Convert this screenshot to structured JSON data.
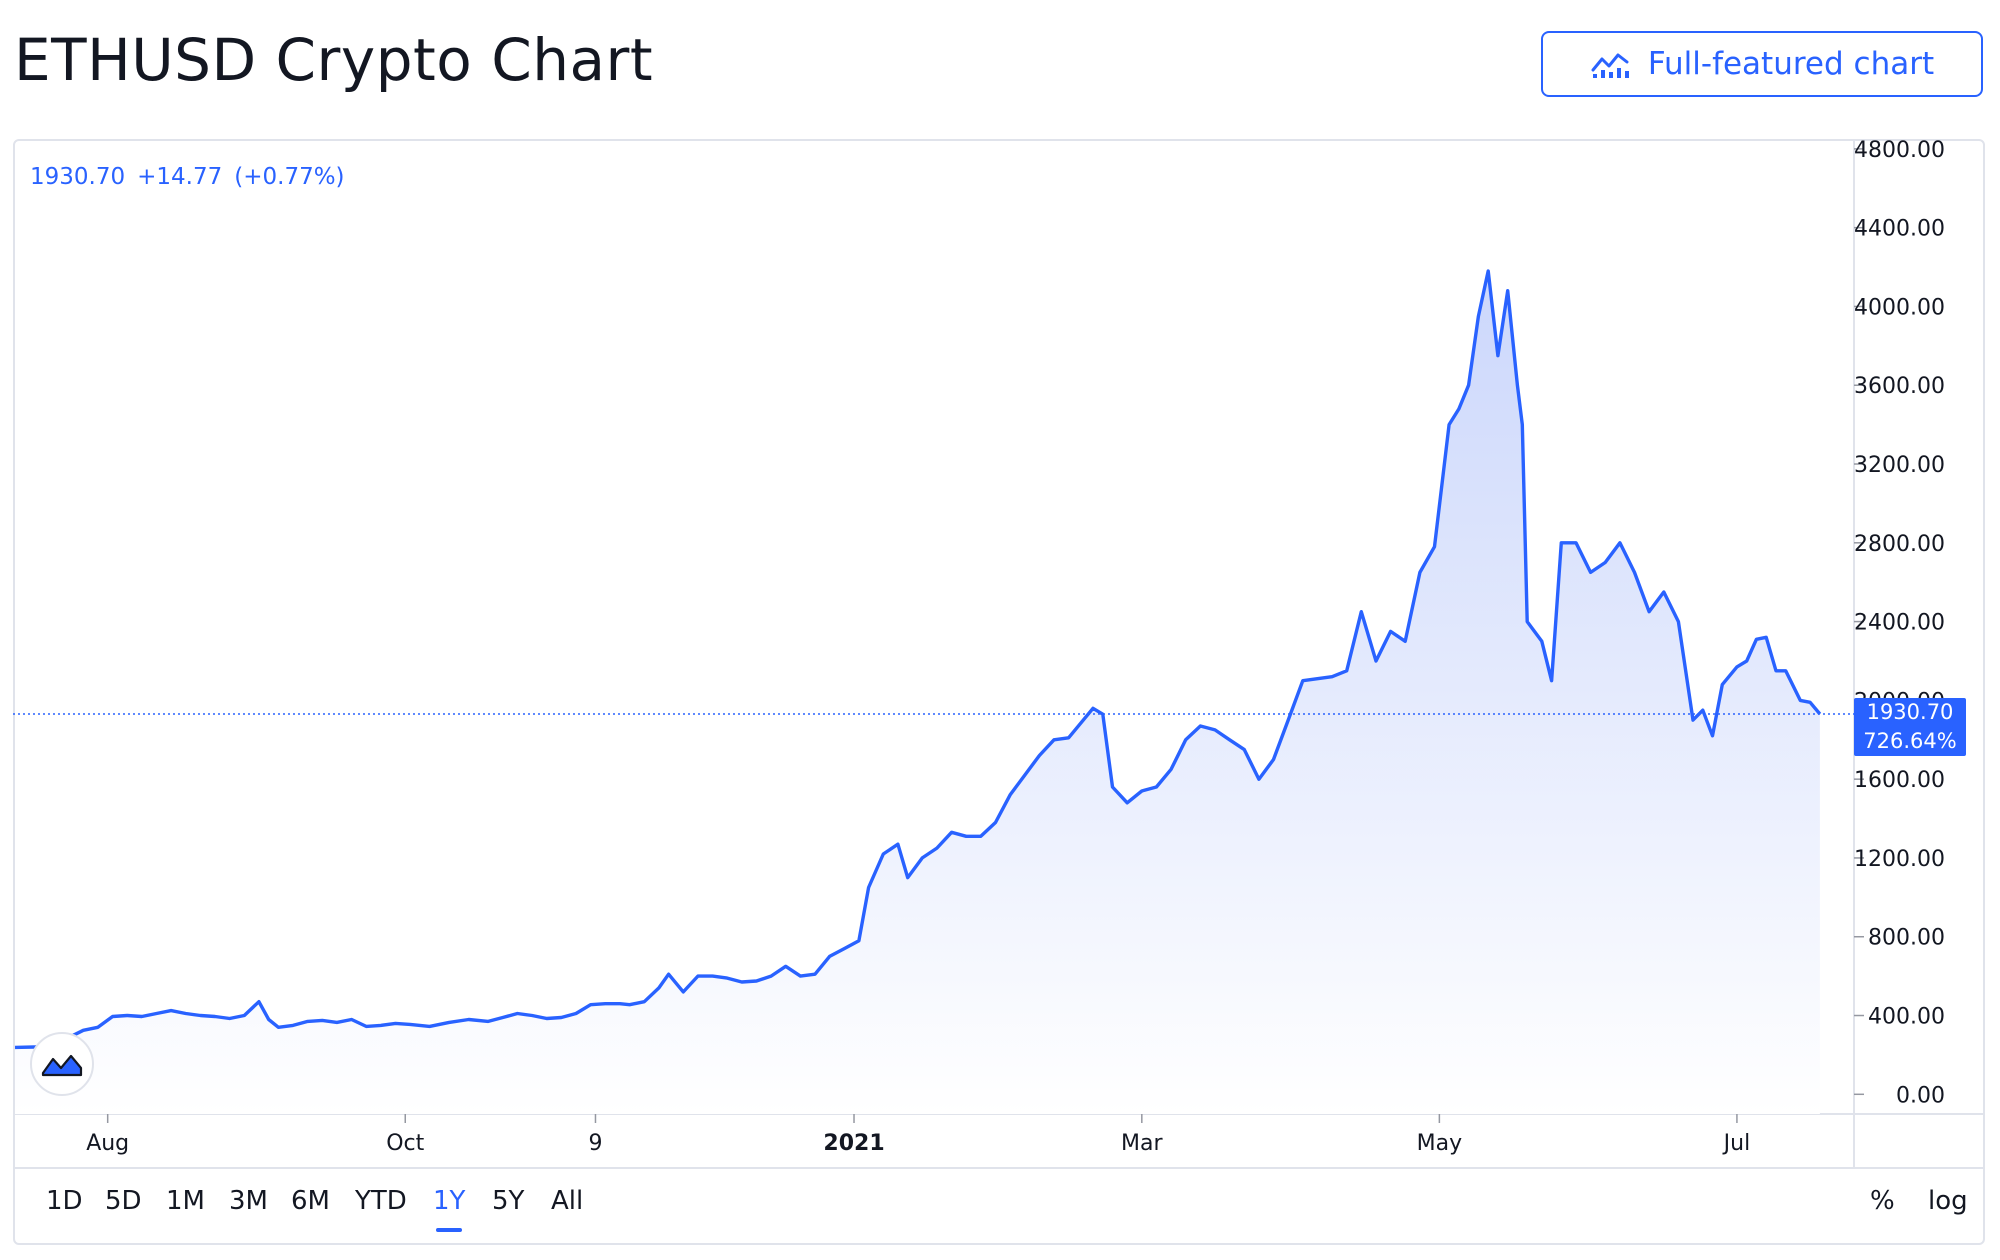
{
  "header": {
    "title": "ETHUSD Crypto Chart",
    "full_chart_label": "Full-featured chart",
    "full_chart_icon": "chart-icon"
  },
  "legend": {
    "price": "1930.70",
    "change": "+14.77",
    "change_pct": "(+0.77%)"
  },
  "badge": {
    "price": "1930.70",
    "pct": "726.64%"
  },
  "timeframes": [
    "1D",
    "5D",
    "1M",
    "3M",
    "6M",
    "YTD",
    "1Y",
    "5Y",
    "All"
  ],
  "active_timeframe": "1Y",
  "scale_toggles": [
    "%",
    "log"
  ],
  "colors": {
    "line": "#2962ff",
    "fill_top": "#c9d5fb",
    "fill_bottom": "#ffffff",
    "text": "#131722",
    "axis": "#e0e3eb"
  },
  "chart_data": {
    "type": "area",
    "title": "",
    "xlabel": "",
    "ylabel": "",
    "ylim": [
      -100,
      4840
    ],
    "yticks": [
      0,
      400,
      800,
      1200,
      1600,
      2000,
      2400,
      2800,
      3200,
      3600,
      4000,
      4400,
      4800
    ],
    "ytick_labels": [
      "0.00",
      "400.00",
      "800.00",
      "1200.00",
      "1600.00",
      "2000.00",
      "2400.00",
      "2800.00",
      "3200.00",
      "3600.00",
      "4000.00",
      "4400.00",
      "4800.00"
    ],
    "xlim": [
      "2020-07-13",
      "2021-07-25"
    ],
    "xticks": [
      {
        "date": "2020-08-01",
        "label": "Aug",
        "bold": false
      },
      {
        "date": "2020-10-01",
        "label": "Oct",
        "bold": false
      },
      {
        "date": "2020-11-09",
        "label": "9",
        "bold": false
      },
      {
        "date": "2021-01-01",
        "label": "2021",
        "bold": true
      },
      {
        "date": "2021-03-01",
        "label": "Mar",
        "bold": false
      },
      {
        "date": "2021-05-01",
        "label": "May",
        "bold": false
      },
      {
        "date": "2021-07-01",
        "label": "Jul",
        "bold": false
      }
    ],
    "last_price": 1930.7,
    "grid": false,
    "series": [
      {
        "values": [
          [
            "2020-07-13",
            238
          ],
          [
            "2020-07-17",
            240
          ],
          [
            "2020-07-20",
            250
          ],
          [
            "2020-07-22",
            275
          ],
          [
            "2020-07-25",
            300
          ],
          [
            "2020-07-27",
            325
          ],
          [
            "2020-07-30",
            340
          ],
          [
            "2020-08-02",
            395
          ],
          [
            "2020-08-05",
            400
          ],
          [
            "2020-08-08",
            395
          ],
          [
            "2020-08-11",
            410
          ],
          [
            "2020-08-14",
            425
          ],
          [
            "2020-08-17",
            410
          ],
          [
            "2020-08-20",
            400
          ],
          [
            "2020-08-23",
            395
          ],
          [
            "2020-08-26",
            385
          ],
          [
            "2020-08-29",
            400
          ],
          [
            "2020-09-01",
            470
          ],
          [
            "2020-09-03",
            380
          ],
          [
            "2020-09-05",
            340
          ],
          [
            "2020-09-08",
            350
          ],
          [
            "2020-09-11",
            370
          ],
          [
            "2020-09-14",
            375
          ],
          [
            "2020-09-17",
            365
          ],
          [
            "2020-09-20",
            380
          ],
          [
            "2020-09-23",
            345
          ],
          [
            "2020-09-26",
            350
          ],
          [
            "2020-09-29",
            360
          ],
          [
            "2020-10-02",
            355
          ],
          [
            "2020-10-06",
            345
          ],
          [
            "2020-10-10",
            365
          ],
          [
            "2020-10-14",
            380
          ],
          [
            "2020-10-18",
            370
          ],
          [
            "2020-10-21",
            390
          ],
          [
            "2020-10-24",
            410
          ],
          [
            "2020-10-27",
            400
          ],
          [
            "2020-10-30",
            385
          ],
          [
            "2020-11-02",
            390
          ],
          [
            "2020-11-05",
            410
          ],
          [
            "2020-11-08",
            455
          ],
          [
            "2020-11-11",
            460
          ],
          [
            "2020-11-14",
            460
          ],
          [
            "2020-11-16",
            455
          ],
          [
            "2020-11-19",
            470
          ],
          [
            "2020-11-22",
            540
          ],
          [
            "2020-11-24",
            610
          ],
          [
            "2020-11-27",
            520
          ],
          [
            "2020-11-30",
            600
          ],
          [
            "2020-12-03",
            600
          ],
          [
            "2020-12-06",
            590
          ],
          [
            "2020-12-09",
            570
          ],
          [
            "2020-12-12",
            575
          ],
          [
            "2020-12-15",
            600
          ],
          [
            "2020-12-18",
            650
          ],
          [
            "2020-12-21",
            600
          ],
          [
            "2020-12-24",
            610
          ],
          [
            "2020-12-27",
            700
          ],
          [
            "2020-12-30",
            740
          ],
          [
            "2021-01-02",
            780
          ],
          [
            "2021-01-04",
            1050
          ],
          [
            "2021-01-07",
            1220
          ],
          [
            "2021-01-10",
            1270
          ],
          [
            "2021-01-12",
            1100
          ],
          [
            "2021-01-15",
            1200
          ],
          [
            "2021-01-18",
            1250
          ],
          [
            "2021-01-21",
            1330
          ],
          [
            "2021-01-24",
            1310
          ],
          [
            "2021-01-27",
            1310
          ],
          [
            "2021-01-30",
            1380
          ],
          [
            "2021-02-02",
            1520
          ],
          [
            "2021-02-05",
            1620
          ],
          [
            "2021-02-08",
            1720
          ],
          [
            "2021-02-11",
            1800
          ],
          [
            "2021-02-14",
            1810
          ],
          [
            "2021-02-17",
            1900
          ],
          [
            "2021-02-19",
            1960
          ],
          [
            "2021-02-21",
            1930
          ],
          [
            "2021-02-23",
            1560
          ],
          [
            "2021-02-26",
            1480
          ],
          [
            "2021-03-01",
            1540
          ],
          [
            "2021-03-04",
            1560
          ],
          [
            "2021-03-07",
            1650
          ],
          [
            "2021-03-10",
            1800
          ],
          [
            "2021-03-13",
            1870
          ],
          [
            "2021-03-16",
            1850
          ],
          [
            "2021-03-19",
            1800
          ],
          [
            "2021-03-22",
            1750
          ],
          [
            "2021-03-25",
            1600
          ],
          [
            "2021-03-28",
            1700
          ],
          [
            "2021-03-31",
            1900
          ],
          [
            "2021-04-03",
            2100
          ],
          [
            "2021-04-06",
            2110
          ],
          [
            "2021-04-09",
            2120
          ],
          [
            "2021-04-12",
            2150
          ],
          [
            "2021-04-15",
            2450
          ],
          [
            "2021-04-18",
            2200
          ],
          [
            "2021-04-21",
            2350
          ],
          [
            "2021-04-24",
            2300
          ],
          [
            "2021-04-27",
            2650
          ],
          [
            "2021-04-30",
            2780
          ],
          [
            "2021-05-03",
            3400
          ],
          [
            "2021-05-05",
            3480
          ],
          [
            "2021-05-07",
            3600
          ],
          [
            "2021-05-09",
            3950
          ],
          [
            "2021-05-11",
            4180
          ],
          [
            "2021-05-13",
            3750
          ],
          [
            "2021-05-15",
            4080
          ],
          [
            "2021-05-17",
            3600
          ],
          [
            "2021-05-18",
            3400
          ],
          [
            "2021-05-19",
            2400
          ],
          [
            "2021-05-22",
            2300
          ],
          [
            "2021-05-24",
            2100
          ],
          [
            "2021-05-26",
            2800
          ],
          [
            "2021-05-29",
            2800
          ],
          [
            "2021-06-01",
            2650
          ],
          [
            "2021-06-04",
            2700
          ],
          [
            "2021-06-07",
            2800
          ],
          [
            "2021-06-10",
            2650
          ],
          [
            "2021-06-13",
            2450
          ],
          [
            "2021-06-16",
            2550
          ],
          [
            "2021-06-19",
            2400
          ],
          [
            "2021-06-22",
            1900
          ],
          [
            "2021-06-24",
            1950
          ],
          [
            "2021-06-26",
            1820
          ],
          [
            "2021-06-28",
            2080
          ],
          [
            "2021-07-01",
            2170
          ],
          [
            "2021-07-03",
            2200
          ],
          [
            "2021-07-05",
            2310
          ],
          [
            "2021-07-07",
            2320
          ],
          [
            "2021-07-09",
            2150
          ],
          [
            "2021-07-11",
            2150
          ],
          [
            "2021-07-14",
            2000
          ],
          [
            "2021-07-16",
            1990
          ],
          [
            "2021-07-18",
            1930.7
          ]
        ]
      }
    ]
  }
}
